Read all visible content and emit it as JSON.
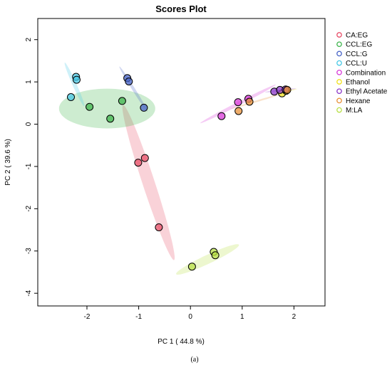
{
  "chart_data": {
    "type": "scatter",
    "title": "Scores Plot",
    "xlabel": "PC 1 ( 44.8 %)",
    "ylabel": "PC 2 ( 39.6 %)",
    "xlim": [
      -2.95,
      2.6
    ],
    "ylim": [
      -4.3,
      2.5
    ],
    "x_ticks": [
      -2,
      -1,
      0,
      1,
      2
    ],
    "y_ticks": [
      -4,
      -3,
      -2,
      -1,
      0,
      1,
      2
    ],
    "grid": false,
    "legend_position": "right",
    "caption": "(a)",
    "series": [
      {
        "name": "CA:EG",
        "color": "#e8506a",
        "points": [
          [
            -1.01,
            -0.91
          ],
          [
            -0.88,
            -0.8
          ],
          [
            -0.61,
            -2.44
          ]
        ],
        "ellipse": {
          "cx": -0.81,
          "cy": -1.38,
          "rx": 1.9,
          "ry": 0.12,
          "angle": -75
        }
      },
      {
        "name": "CCL:EG",
        "color": "#3cb44b",
        "points": [
          [
            -1.95,
            0.41
          ],
          [
            -1.55,
            0.13
          ],
          [
            -1.32,
            0.55
          ]
        ],
        "ellipse": {
          "cx": -1.61,
          "cy": 0.37,
          "rx": 0.93,
          "ry": 0.47,
          "angle": 0
        }
      },
      {
        "name": "CCL:G",
        "color": "#4a66c8",
        "points": [
          [
            -1.22,
            1.09
          ],
          [
            -1.19,
            1.01
          ],
          [
            -0.9,
            0.39
          ]
        ],
        "ellipse": {
          "cx": -1.1,
          "cy": 0.83,
          "rx": 0.6,
          "ry": 0.03,
          "angle": -63
        }
      },
      {
        "name": "CCL:U",
        "color": "#46c8e6",
        "points": [
          [
            -2.21,
            1.12
          ],
          [
            -2.2,
            1.05
          ],
          [
            -2.31,
            0.64
          ]
        ],
        "ellipse": {
          "cx": -2.24,
          "cy": 0.94,
          "rx": 0.55,
          "ry": 0.04,
          "angle": -70
        }
      },
      {
        "name": "Combination",
        "color": "#d838d8",
        "points": [
          [
            0.6,
            0.19
          ],
          [
            0.92,
            0.52
          ],
          [
            1.12,
            0.6
          ]
        ],
        "ellipse": {
          "cx": 0.92,
          "cy": 0.48,
          "rx": 0.86,
          "ry": 0.04,
          "angle": 32
        }
      },
      {
        "name": "Ethanol",
        "color": "#f0e020",
        "points": [
          [
            1.77,
            0.73
          ],
          [
            1.85,
            0.79
          ]
        ],
        "ellipse": {
          "cx": 1.82,
          "cy": 0.77,
          "rx": 0.25,
          "ry": 0.02,
          "angle": 15
        }
      },
      {
        "name": "Ethyl Acetate",
        "color": "#8a36c8",
        "points": [
          [
            1.62,
            0.77
          ],
          [
            1.73,
            0.81
          ],
          [
            1.84,
            0.82
          ]
        ],
        "ellipse": {
          "cx": 1.74,
          "cy": 0.8,
          "rx": 0.3,
          "ry": 0.02,
          "angle": 8
        }
      },
      {
        "name": "Hexane",
        "color": "#e8923a",
        "points": [
          [
            0.93,
            0.31
          ],
          [
            1.14,
            0.53
          ],
          [
            1.87,
            0.81
          ]
        ],
        "ellipse": {
          "cx": 1.3,
          "cy": 0.55,
          "rx": 0.55,
          "ry": 0.02,
          "angle": 20
        }
      },
      {
        "name": "M:LA",
        "color": "#b8e046",
        "points": [
          [
            0.03,
            -3.37
          ],
          [
            0.45,
            -3.02
          ],
          [
            0.48,
            -3.1
          ]
        ],
        "ellipse": {
          "cx": 0.33,
          "cy": -3.2,
          "rx": 0.7,
          "ry": 0.1,
          "angle": 30
        }
      }
    ]
  }
}
